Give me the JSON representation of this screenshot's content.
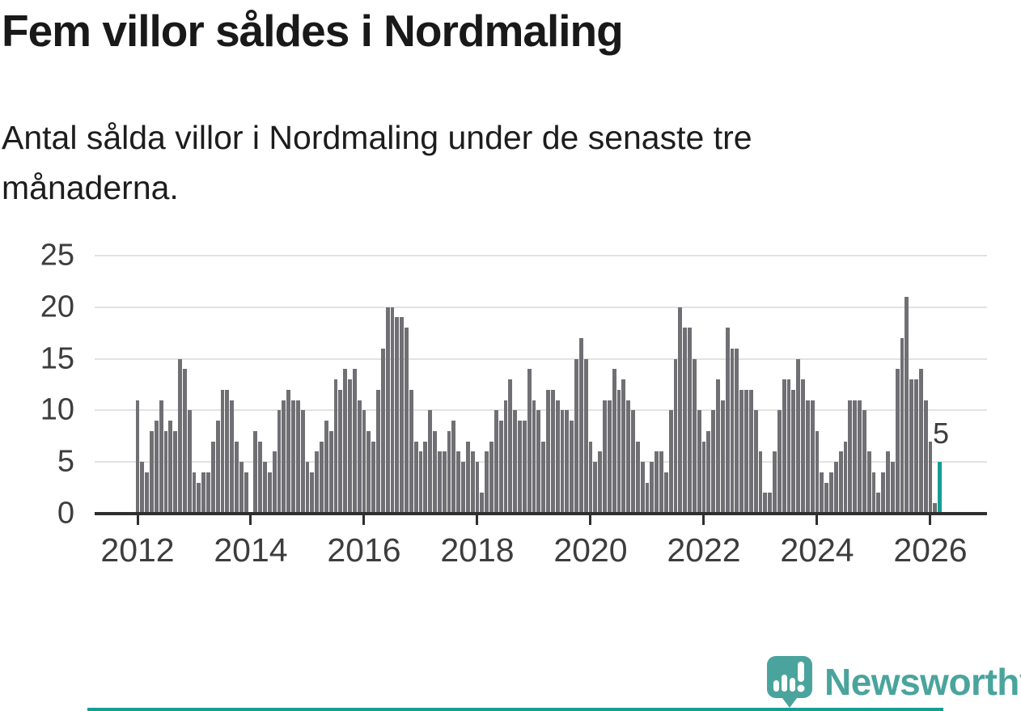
{
  "header": {
    "title": "Fem villor såldes i Nordmaling",
    "subtitle": "Antal sålda villor i Nordmaling under de senaste tre månaderna."
  },
  "annotation": {
    "last_value_label": "5"
  },
  "footer": {
    "brand": "Newsworthy"
  },
  "colors": {
    "bar": "#6f6f74",
    "accent": "#149e96",
    "logo_teal": "#4aa49d",
    "grid": "#e2e2e2",
    "axis": "#2f2f2f",
    "tick_label": "#3d3d3d"
  },
  "chart_data": {
    "type": "bar",
    "title": "Fem villor såldes i Nordmaling",
    "subtitle": "Antal sålda villor i Nordmaling under de senaste tre månaderna.",
    "x_start": {
      "year": 2012,
      "month": 1
    },
    "x_frequency": "monthly",
    "values": [
      11,
      5,
      4,
      8,
      9,
      11,
      8,
      9,
      8,
      15,
      14,
      10,
      4,
      3,
      4,
      4,
      7,
      9,
      12,
      12,
      11,
      7,
      5,
      4,
      0,
      8,
      7,
      5,
      4,
      6,
      10,
      11,
      12,
      11,
      11,
      10,
      5,
      4,
      6,
      7,
      9,
      8,
      13,
      12,
      14,
      13,
      14,
      11,
      10,
      8,
      7,
      12,
      16,
      20,
      20,
      19,
      19,
      18,
      12,
      7,
      6,
      7,
      10,
      8,
      6,
      6,
      8,
      9,
      6,
      5,
      7,
      6,
      5,
      2,
      6,
      7,
      10,
      9,
      11,
      13,
      10,
      9,
      9,
      14,
      11,
      10,
      7,
      12,
      12,
      11,
      10,
      10,
      9,
      15,
      17,
      15,
      7,
      5,
      6,
      11,
      11,
      14,
      12,
      13,
      11,
      10,
      7,
      5,
      3,
      5,
      6,
      6,
      4,
      10,
      15,
      20,
      18,
      18,
      15,
      10,
      7,
      8,
      10,
      13,
      11,
      18,
      16,
      16,
      12,
      12,
      12,
      10,
      6,
      2,
      2,
      6,
      10,
      13,
      13,
      12,
      15,
      13,
      11,
      11,
      8,
      4,
      3,
      4,
      5,
      6,
      7,
      11,
      11,
      11,
      10,
      6,
      4,
      2,
      4,
      6,
      5,
      14,
      17,
      21,
      13,
      13,
      14,
      11,
      7,
      1,
      5
    ],
    "highlight_last": true,
    "last_value": 5,
    "x_tick_years": [
      "2012",
      "2014",
      "2016",
      "2018",
      "2020",
      "2022",
      "2024",
      "2026"
    ],
    "y_ticks": [
      0,
      5,
      10,
      15,
      20,
      25
    ],
    "ylim": [
      0,
      25
    ],
    "grid": true,
    "legend": "none"
  }
}
